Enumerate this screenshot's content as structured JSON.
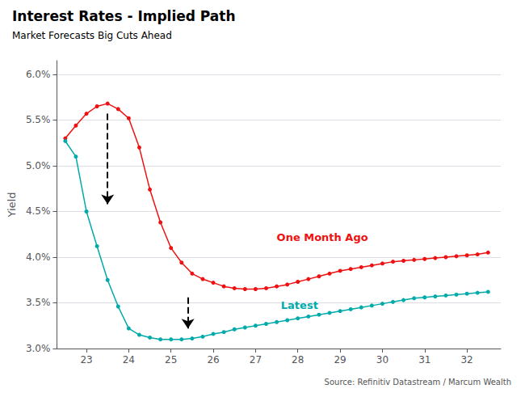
{
  "chart_data": {
    "type": "line",
    "title": "Interest Rates - Implied Path",
    "subtitle": "Market Forecasts Big Cuts Ahead",
    "ylabel": "Yield",
    "source": "Source: Refinitiv Datastream / Marcum Wealth",
    "x": [
      22.5,
      22.75,
      23.0,
      23.25,
      23.5,
      23.75,
      24.0,
      24.25,
      24.5,
      24.75,
      25.0,
      25.25,
      25.5,
      25.75,
      26.0,
      26.25,
      26.5,
      26.75,
      27.0,
      27.25,
      27.5,
      27.75,
      28.0,
      28.25,
      28.5,
      28.75,
      29.0,
      29.25,
      29.5,
      29.75,
      30.0,
      30.25,
      30.5,
      30.75,
      31.0,
      31.25,
      31.5,
      31.75,
      32.0,
      32.25,
      32.5
    ],
    "series": [
      {
        "name": "One Month Ago",
        "color": "#EE1111",
        "marker": "circle",
        "label_at": [
          27.5,
          4.22
        ],
        "values": [
          5.3,
          5.44,
          5.57,
          5.65,
          5.68,
          5.62,
          5.52,
          5.2,
          4.74,
          4.38,
          4.1,
          3.94,
          3.82,
          3.76,
          3.72,
          3.68,
          3.66,
          3.65,
          3.65,
          3.66,
          3.68,
          3.7,
          3.73,
          3.76,
          3.79,
          3.82,
          3.85,
          3.87,
          3.89,
          3.91,
          3.93,
          3.95,
          3.96,
          3.97,
          3.98,
          3.99,
          4.0,
          4.01,
          4.02,
          4.03,
          4.05
        ]
      },
      {
        "name": "Latest",
        "color": "#00AAAA",
        "marker": "circle",
        "label_at": [
          27.6,
          3.47
        ],
        "values": [
          5.27,
          5.1,
          4.5,
          4.12,
          3.75,
          3.46,
          3.22,
          3.15,
          3.12,
          3.1,
          3.1,
          3.1,
          3.11,
          3.13,
          3.16,
          3.18,
          3.21,
          3.23,
          3.25,
          3.27,
          3.29,
          3.31,
          3.33,
          3.35,
          3.37,
          3.39,
          3.41,
          3.43,
          3.45,
          3.47,
          3.49,
          3.51,
          3.53,
          3.55,
          3.56,
          3.57,
          3.58,
          3.59,
          3.6,
          3.61,
          3.62
        ]
      }
    ],
    "arrows": [
      {
        "x": 23.5,
        "from": 5.57,
        "to": 4.58
      },
      {
        "x": 25.4,
        "from": 3.56,
        "to": 3.22
      }
    ],
    "xlim": [
      22.3,
      32.8
    ],
    "xticks": [
      23,
      24,
      25,
      26,
      27,
      28,
      29,
      30,
      31,
      32
    ],
    "ylim": [
      3.0,
      6.15
    ],
    "yticks": [
      {
        "value": 3.0,
        "label": "3.0%"
      },
      {
        "value": 3.5,
        "label": "3.5%"
      },
      {
        "value": 4.0,
        "label": "4.0%"
      },
      {
        "value": 4.5,
        "label": "4.5%"
      },
      {
        "value": 5.0,
        "label": "5.0%"
      },
      {
        "value": 5.5,
        "label": "5.5%"
      },
      {
        "value": 6.0,
        "label": "6.0%"
      }
    ],
    "grid": true
  }
}
